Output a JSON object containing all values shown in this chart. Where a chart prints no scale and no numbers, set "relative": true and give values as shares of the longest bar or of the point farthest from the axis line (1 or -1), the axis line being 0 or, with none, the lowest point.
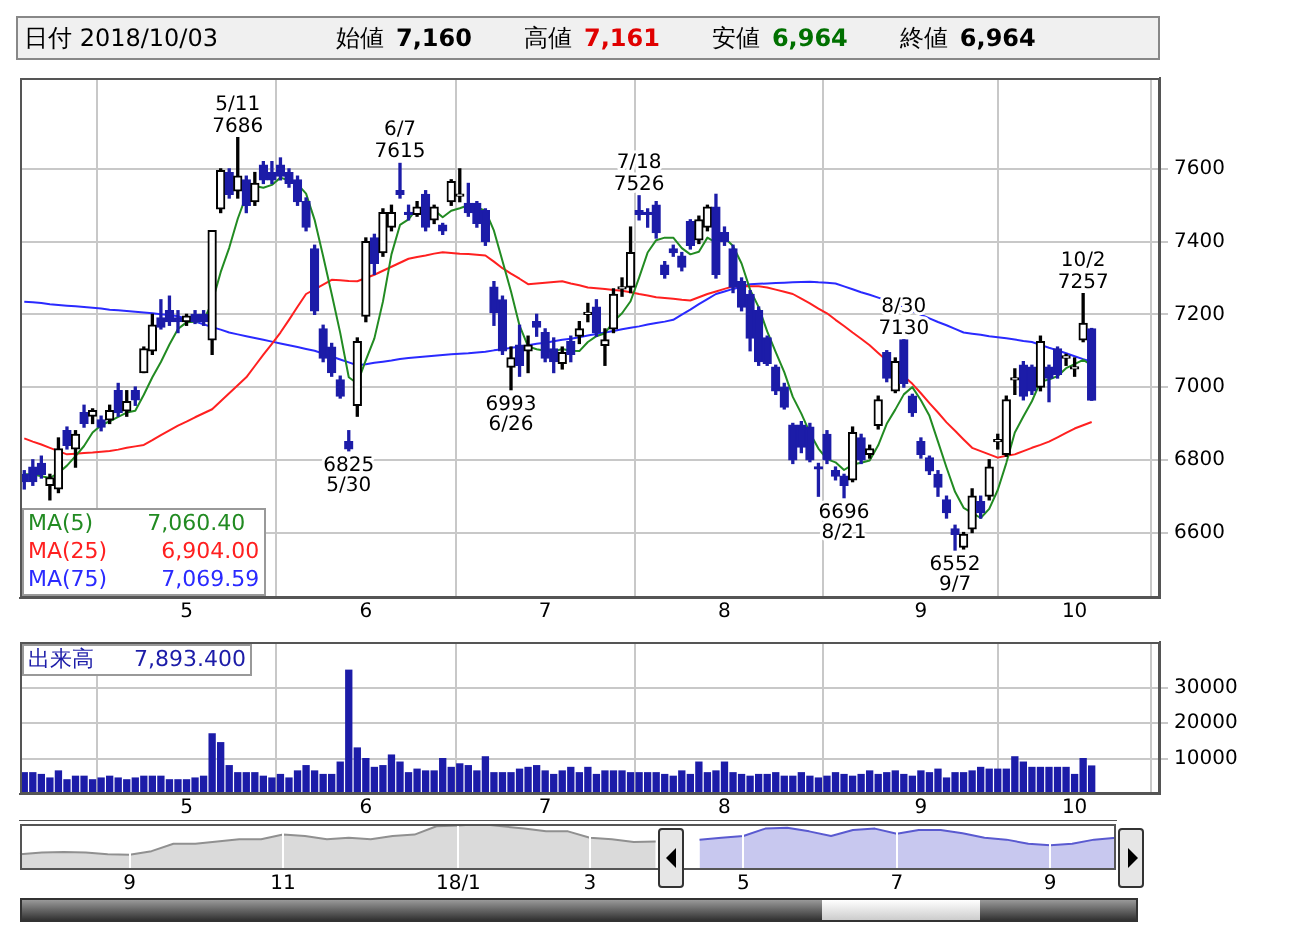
{
  "chart_data": [
    {
      "type": "other",
      "annotations": [
        "日付 2018/10/03",
        "始値",
        "7,160",
        "高値",
        "7,161",
        "安値",
        "6,964",
        "終値",
        "6,964"
      ]
    },
    {
      "type": "candlestick",
      "categories": [
        null,
        null,
        null,
        null,
        null,
        null,
        null,
        null,
        null,
        null,
        null,
        null,
        null,
        null,
        null,
        null,
        null,
        null,
        null,
        "5",
        null,
        null,
        null,
        null,
        null,
        null,
        null,
        null,
        null,
        null,
        null,
        null,
        null,
        null,
        null,
        null,
        null,
        null,
        null,
        null,
        "6",
        null,
        null,
        null,
        null,
        null,
        null,
        null,
        null,
        null,
        null,
        null,
        null,
        null,
        null,
        null,
        null,
        null,
        null,
        null,
        null,
        "7",
        null,
        null,
        null,
        null,
        null,
        null,
        null,
        null,
        null,
        null,
        null,
        null,
        null,
        null,
        null,
        null,
        null,
        null,
        null,
        null,
        "8",
        null,
        null,
        null,
        null,
        null,
        null,
        null,
        null,
        null,
        null,
        null,
        null,
        null,
        null,
        null,
        null,
        null,
        null,
        null,
        null,
        null,
        null,
        "9",
        null,
        null,
        null,
        null,
        null,
        null,
        null,
        null,
        null,
        null,
        null,
        null,
        null,
        null,
        null,
        null,
        null,
        "10",
        null,
        null
      ],
      "ohlc": [
        [
          6760,
          6770,
          6720,
          6740
        ],
        [
          6780,
          6800,
          6730,
          6740
        ],
        [
          6790,
          6810,
          6750,
          6760
        ],
        [
          6730,
          6760,
          6690,
          6750
        ],
        [
          6720,
          6860,
          6710,
          6830
        ],
        [
          6880,
          6890,
          6830,
          6840
        ],
        [
          6830,
          6880,
          6780,
          6870
        ],
        [
          6930,
          6950,
          6890,
          6900
        ],
        [
          6920,
          6940,
          6900,
          6935
        ],
        [
          6910,
          6920,
          6880,
          6890
        ],
        [
          6910,
          6950,
          6900,
          6935
        ],
        [
          6990,
          7010,
          6920,
          6930
        ],
        [
          6935,
          6990,
          6920,
          6960
        ],
        [
          6990,
          7000,
          6950,
          6965
        ],
        [
          7040,
          7110,
          7040,
          7105
        ],
        [
          7100,
          7200,
          7090,
          7170
        ],
        [
          7190,
          7240,
          7160,
          7165
        ],
        [
          7210,
          7250,
          7170,
          7180
        ],
        [
          7190,
          7210,
          7150,
          7180
        ],
        [
          7180,
          7200,
          7170,
          7195
        ],
        [
          7200,
          7210,
          7175,
          7180
        ],
        [
          7200,
          7210,
          7170,
          7180
        ],
        [
          7130,
          7430,
          7090,
          7430
        ],
        [
          7490,
          7600,
          7480,
          7595
        ],
        [
          7590,
          7600,
          7520,
          7530
        ],
        [
          7540,
          7686,
          7520,
          7580
        ],
        [
          7570,
          7580,
          7480,
          7500
        ],
        [
          7510,
          7590,
          7500,
          7560
        ],
        [
          7610,
          7620,
          7560,
          7570
        ],
        [
          7590,
          7620,
          7560,
          7570
        ],
        [
          7610,
          7630,
          7570,
          7580
        ],
        [
          7590,
          7600,
          7550,
          7560
        ],
        [
          7570,
          7580,
          7500,
          7510
        ],
        [
          7510,
          7520,
          7430,
          7440
        ],
        [
          7380,
          7390,
          7200,
          7210
        ],
        [
          7160,
          7170,
          7070,
          7080
        ],
        [
          7110,
          7120,
          7030,
          7040
        ],
        [
          7020,
          7030,
          6970,
          6975
        ],
        [
          6850,
          6880,
          6825,
          6830
        ],
        [
          6950,
          7135,
          6920,
          7125
        ],
        [
          7195,
          7410,
          7180,
          7400
        ],
        [
          7410,
          7420,
          7310,
          7340
        ],
        [
          7370,
          7490,
          7360,
          7480
        ],
        [
          7440,
          7500,
          7430,
          7480
        ],
        [
          7540,
          7615,
          7520,
          7530
        ],
        [
          7480,
          7500,
          7460,
          7475
        ],
        [
          7475,
          7510,
          7470,
          7495
        ],
        [
          7530,
          7540,
          7430,
          7440
        ],
        [
          7460,
          7500,
          7450,
          7495
        ],
        [
          7445,
          7450,
          7420,
          7430
        ],
        [
          7510,
          7570,
          7500,
          7565
        ],
        [
          7525,
          7600,
          7510,
          7530
        ],
        [
          7505,
          7560,
          7470,
          7480
        ],
        [
          7505,
          7510,
          7440,
          7450
        ],
        [
          7485,
          7490,
          7390,
          7400
        ],
        [
          7275,
          7290,
          7170,
          7205
        ],
        [
          7240,
          7250,
          7090,
          7100
        ],
        [
          7055,
          7110,
          6993,
          7080
        ],
        [
          7115,
          7170,
          7030,
          7060
        ],
        [
          7100,
          7140,
          7040,
          7115
        ],
        [
          7180,
          7200,
          7140,
          7165
        ],
        [
          7150,
          7160,
          7070,
          7080
        ],
        [
          7105,
          7135,
          7040,
          7070
        ],
        [
          7065,
          7110,
          7050,
          7095
        ],
        [
          7125,
          7140,
          7070,
          7090
        ],
        [
          7140,
          7180,
          7120,
          7160
        ],
        [
          7200,
          7230,
          7180,
          7205
        ],
        [
          7220,
          7240,
          7140,
          7150
        ],
        [
          7115,
          7160,
          7060,
          7130
        ],
        [
          7160,
          7270,
          7150,
          7255
        ],
        [
          7270,
          7300,
          7250,
          7275
        ],
        [
          7275,
          7440,
          7260,
          7370
        ],
        [
          7485,
          7526,
          7460,
          7475
        ],
        [
          7478,
          7490,
          7440,
          7475
        ],
        [
          7500,
          7510,
          7410,
          7425
        ],
        [
          7335,
          7345,
          7300,
          7310
        ],
        [
          7380,
          7390,
          7360,
          7370
        ],
        [
          7360,
          7370,
          7320,
          7330
        ],
        [
          7455,
          7460,
          7380,
          7390
        ],
        [
          7405,
          7470,
          7395,
          7460
        ],
        [
          7440,
          7500,
          7430,
          7495
        ],
        [
          7495,
          7530,
          7300,
          7310
        ],
        [
          7425,
          7440,
          7390,
          7400
        ],
        [
          7380,
          7390,
          7260,
          7275
        ],
        [
          7290,
          7300,
          7210,
          7220
        ],
        [
          7255,
          7265,
          7100,
          7135
        ],
        [
          7210,
          7220,
          7060,
          7070
        ],
        [
          7135,
          7140,
          7060,
          7065
        ],
        [
          7055,
          7060,
          6980,
          6990
        ],
        [
          7000,
          7010,
          6940,
          6945
        ],
        [
          6895,
          6900,
          6790,
          6800
        ],
        [
          6895,
          6905,
          6820,
          6835
        ],
        [
          6890,
          6900,
          6795,
          6800
        ],
        [
          6780,
          6790,
          6700,
          6775
        ],
        [
          6870,
          6880,
          6790,
          6800
        ],
        [
          6770,
          6780,
          6745,
          6755
        ],
        [
          6755,
          6760,
          6696,
          6730
        ],
        [
          6745,
          6890,
          6740,
          6875
        ],
        [
          6860,
          6870,
          6790,
          6800
        ],
        [
          6815,
          6840,
          6805,
          6830
        ],
        [
          6895,
          6975,
          6885,
          6965
        ],
        [
          7095,
          7100,
          7015,
          7025
        ],
        [
          6990,
          7080,
          6985,
          7070
        ],
        [
          7130,
          7130,
          7000,
          7010
        ],
        [
          6975,
          6980,
          6920,
          6930
        ],
        [
          6850,
          6860,
          6805,
          6815
        ],
        [
          6805,
          6810,
          6760,
          6770
        ],
        [
          6760,
          6770,
          6700,
          6725
        ],
        [
          6690,
          6700,
          6640,
          6655
        ],
        [
          6610,
          6620,
          6552,
          6595
        ],
        [
          6560,
          6600,
          6555,
          6595
        ],
        [
          6610,
          6720,
          6600,
          6700
        ],
        [
          6685,
          6700,
          6640,
          6655
        ],
        [
          6700,
          6800,
          6690,
          6780
        ],
        [
          6850,
          6870,
          6830,
          6855
        ],
        [
          6815,
          6975,
          6810,
          6965
        ],
        [
          7020,
          7050,
          6980,
          7020
        ],
        [
          7060,
          7070,
          6965,
          6975
        ],
        [
          7055,
          7060,
          6980,
          6990
        ],
        [
          7000,
          7140,
          6990,
          7125
        ],
        [
          7055,
          7060,
          6960,
          7025
        ],
        [
          7105,
          7110,
          7025,
          7035
        ],
        [
          7080,
          7090,
          7060,
          7085
        ],
        [
          7050,
          7080,
          7030,
          7055
        ],
        [
          7130,
          7257,
          7125,
          7175
        ],
        [
          7160,
          7161,
          6964,
          6964
        ]
      ],
      "series": [
        {
          "name": "MA(5)",
          "type": "line",
          "color": "#228b22",
          "values": [
            6760,
            6760,
            6755,
            6750,
            6764,
            6784,
            6810,
            6838,
            6875,
            6895,
            6906,
            6918,
            6930,
            6935,
            6979,
            7027,
            7069,
            7117,
            7160,
            7178,
            7180,
            7183,
            7233,
            7316,
            7383,
            7463,
            7527,
            7553,
            7548,
            7556,
            7576,
            7568,
            7558,
            7532,
            7460,
            7360,
            7256,
            7149,
            7027,
            7010,
            7074,
            7134,
            7235,
            7365,
            7446,
            7461,
            7492,
            7484,
            7487,
            7467,
            7485,
            7492,
            7500,
            7494,
            7485,
            7430,
            7347,
            7263,
            7169,
            7112,
            7104,
            7100,
            7097,
            7105,
            7100,
            7099,
            7124,
            7140,
            7148,
            7180,
            7203,
            7236,
            7301,
            7370,
            7404,
            7411,
            7411,
            7382,
            7365,
            7372,
            7411,
            7397,
            7411,
            7388,
            7340,
            7268,
            7220,
            7153,
            7096,
            7041,
            6973,
            6927,
            6874,
            6831,
            6802,
            6793,
            6772,
            6787,
            6792,
            6798,
            6840,
            6899,
            6938,
            6980,
            7000,
            6964,
            6921,
            6850,
            6779,
            6712,
            6668,
            6654,
            6640,
            6665,
            6717,
            6791,
            6875,
            6919,
            6961,
            7015,
            7021,
            7030,
            7052,
            7063,
            7075,
            7060
          ]
        },
        {
          "name": "MA(25)",
          "type": "line",
          "color": "#ff2020",
          "values": [
            6859,
            6850,
            6842,
            6833,
            6824,
            6815,
            6817,
            6819,
            6820,
            6822,
            6824,
            6828,
            6833,
            6837,
            6841,
            6854,
            6868,
            6881,
            6894,
            6905,
            6917,
            6928,
            6939,
            6961,
            6983,
            7005,
            7027,
            7058,
            7089,
            7119,
            7150,
            7185,
            7221,
            7256,
            7269,
            7282,
            7295,
            7294,
            7292,
            7291,
            7300,
            7309,
            7320,
            7331,
            7342,
            7353,
            7358,
            7362,
            7367,
            7371,
            7369,
            7367,
            7366,
            7364,
            7362,
            7345,
            7327,
            7312,
            7298,
            7283,
            7285,
            7287,
            7289,
            7291,
            7285,
            7280,
            7274,
            7272,
            7270,
            7267,
            7265,
            7261,
            7256,
            7252,
            7247,
            7245,
            7243,
            7240,
            7238,
            7247,
            7256,
            7263,
            7270,
            7277,
            7277,
            7277,
            7277,
            7274,
            7268,
            7262,
            7256,
            7243,
            7230,
            7216,
            7203,
            7185,
            7168,
            7150,
            7133,
            7115,
            7094,
            7073,
            null,
            7030,
            7009,
            6983,
            6956,
            6930,
            6903,
            6880,
            6856,
            6833,
            6824,
            6815,
            6806,
            6811,
            6815,
            6824,
            6833,
            6841,
            6850,
            6862,
            6874,
            6886,
            6895,
            6904
          ]
        },
        {
          "name": "MA(75)",
          "type": "line",
          "color": "#2a2aff",
          "values": [
            7235,
            7233,
            7231,
            7228,
            7226,
            7224,
            7222,
            7220,
            7218,
            7216,
            7213,
            7211,
            7209,
            7207,
            7205,
            7203,
            7200,
            7198,
            7195,
            7188,
            7180,
            7173,
            7165,
            7158,
            7150,
            7145,
            7140,
            7135,
            7130,
            7125,
            7120,
            7115,
            7110,
            7105,
            7100,
            7092,
            7084,
            7076,
            7068,
            7060,
            7063,
            7067,
            7070,
            7073,
            7077,
            7080,
            7082,
            7084,
            7086,
            7088,
            7090,
            7092,
            7093,
            7095,
            7097,
            7101,
            7104,
            7108,
            7111,
            7115,
            7119,
            7122,
            7126,
            7130,
            7133,
            7137,
            7142,
            7146,
            7150,
            7154,
            7159,
            7163,
            7167,
            7172,
            7176,
            7180,
            7185,
            7199,
            7213,
            7228,
            7242,
            7256,
            7263,
            7270,
            7276,
            7283,
            7284,
            7285,
            7286,
            7287,
            7288,
            7289,
            7290,
            7288,
            7287,
            7285,
            7277,
            7269,
            7261,
            7254,
            7246,
            7238,
            7228,
            7218,
            7209,
            7199,
            7189,
            7179,
            7170,
            7160,
            7150,
            7147,
            7144,
            7140,
            7137,
            7134,
            7131,
            7127,
            7124,
            7116,
            7108,
            7101,
            7093,
            7085,
            7077,
            7070
          ]
        }
      ],
      "ylim": [
        6420,
        7850
      ],
      "yticks": [
        6600,
        6800,
        7000,
        7200,
        7400,
        7600
      ],
      "grid": true,
      "legend": "bottom left",
      "annotations": [
        {
          "text": "5/11\n7686",
          "y": 7686
        },
        {
          "text": "6825\n5/30",
          "y": 6825
        },
        {
          "text": "6/7\n7615",
          "y": 7615
        },
        {
          "text": "6993\n6/26",
          "y": 6993
        },
        {
          "text": "7/18\n7526",
          "y": 7526
        },
        {
          "text": "6696\n8/21",
          "y": 6696
        },
        {
          "text": "8/30\n7130",
          "y": 7130
        },
        {
          "text": "6552\n9/7",
          "y": 6552
        },
        {
          "text": "10/2\n7257",
          "y": 7257
        },
        "7,060.40",
        "6,904.00",
        "7,069.59"
      ]
    },
    {
      "type": "bar",
      "categories": [
        null,
        null,
        null,
        null,
        null,
        null,
        null,
        null,
        null,
        null,
        null,
        null,
        null,
        null,
        null,
        null,
        null,
        null,
        null,
        "5",
        null,
        null,
        null,
        null,
        null,
        null,
        null,
        null,
        null,
        null,
        null,
        null,
        null,
        null,
        null,
        null,
        null,
        null,
        null,
        null,
        "6",
        null,
        null,
        null,
        null,
        null,
        null,
        null,
        null,
        null,
        null,
        null,
        null,
        null,
        null,
        null,
        null,
        null,
        null,
        null,
        null,
        "7",
        null,
        null,
        null,
        null,
        null,
        null,
        null,
        null,
        null,
        null,
        null,
        null,
        null,
        null,
        null,
        null,
        null,
        null,
        null,
        null,
        "8",
        null,
        null,
        null,
        null,
        null,
        null,
        null,
        null,
        null,
        null,
        null,
        null,
        null,
        null,
        null,
        null,
        null,
        null,
        null,
        null,
        null,
        null,
        "9",
        null,
        null,
        null,
        null,
        null,
        null,
        null,
        null,
        null,
        null,
        null,
        null,
        null,
        null,
        null,
        null,
        null,
        "10",
        null,
        null
      ],
      "series": [
        {
          "name": "出来高",
          "color": "#1c1ca8",
          "values": [
            6000,
            6000,
            5500,
            4500,
            6500,
            4000,
            5000,
            5000,
            4000,
            4500,
            5000,
            4500,
            4000,
            4500,
            5000,
            5000,
            5000,
            4000,
            4000,
            4000,
            4500,
            5000,
            17000,
            14500,
            8000,
            6000,
            6000,
            6000,
            5000,
            4500,
            5500,
            4500,
            6500,
            8000,
            6500,
            5500,
            5500,
            9000,
            35000,
            13000,
            10000,
            7500,
            8000,
            11000,
            9000,
            6000,
            7000,
            6500,
            6500,
            10000,
            7500,
            8500,
            8000,
            6500,
            10500,
            6000,
            6000,
            6000,
            7000,
            7500,
            8000,
            6500,
            5500,
            6500,
            7500,
            6000,
            7500,
            5500,
            6500,
            6500,
            6500,
            6000,
            6000,
            6000,
            6000,
            5500,
            5000,
            6500,
            5500,
            9000,
            6000,
            6500,
            9000,
            6000,
            5500,
            5000,
            5500,
            5500,
            6000,
            5000,
            5000,
            6000,
            5000,
            4500,
            5000,
            6000,
            5500,
            5000,
            5500,
            6500,
            5500,
            6000,
            6500,
            5500,
            5000,
            6500,
            6000,
            7000,
            4500,
            6000,
            6000,
            6500,
            7500,
            7000,
            7000,
            7000,
            10500,
            9000,
            7500,
            7500,
            7500,
            7500,
            7500,
            5500,
            10000,
            7900
          ]
        }
      ],
      "ylim": [
        0,
        43000
      ],
      "yticks": [
        10000,
        20000,
        30000
      ],
      "grid": true,
      "legend": "top left",
      "annotations": [
        "7,893.400"
      ]
    },
    {
      "type": "area",
      "relative": true,
      "grid": "x",
      "categories": [
        null,
        null,
        null,
        null,
        null,
        "9",
        null,
        null,
        null,
        null,
        null,
        null,
        "11",
        null,
        null,
        null,
        null,
        null,
        null,
        null,
        "18/1",
        null,
        null,
        null,
        null,
        null,
        "3",
        null,
        null,
        null,
        null,
        null,
        null,
        "5",
        null,
        null,
        null,
        null,
        null,
        null,
        "7",
        null,
        null,
        null,
        null,
        null,
        null,
        "9",
        null,
        null,
        null
      ],
      "series": [
        {
          "color": "#909090",
          "values": [
            0.34,
            0.38,
            0.39,
            0.38,
            0.34,
            0.33,
            0.41,
            0.57,
            0.57,
            0.62,
            0.67,
            0.67,
            0.77,
            0.74,
            0.67,
            0.7,
            0.67,
            0.74,
            0.77,
            0.95,
            0.97,
            1,
            0.95,
            0.9,
            0.84,
            0.84,
            0.7,
            0.67,
            0.61,
            0.62,
            null,
            null,
            null,
            null,
            null,
            null,
            null,
            null,
            null,
            null,
            null,
            null,
            null,
            null,
            null,
            null,
            null,
            null,
            null,
            null,
            null
          ]
        },
        {
          "color": "#5a5ad0",
          "values": [
            null,
            null,
            null,
            null,
            null,
            null,
            null,
            null,
            null,
            null,
            null,
            null,
            null,
            null,
            null,
            null,
            null,
            null,
            null,
            null,
            null,
            null,
            null,
            null,
            null,
            null,
            null,
            null,
            null,
            null,
            null,
            0.66,
            0.7,
            0.74,
            0.9,
            0.92,
            0.84,
            0.74,
            0.87,
            0.9,
            0.79,
            0.87,
            0.87,
            0.8,
            0.7,
            0.66,
            0.57,
            0.54,
            0.57,
            0.66,
            0.7
          ]
        }
      ]
    }
  ]
}
